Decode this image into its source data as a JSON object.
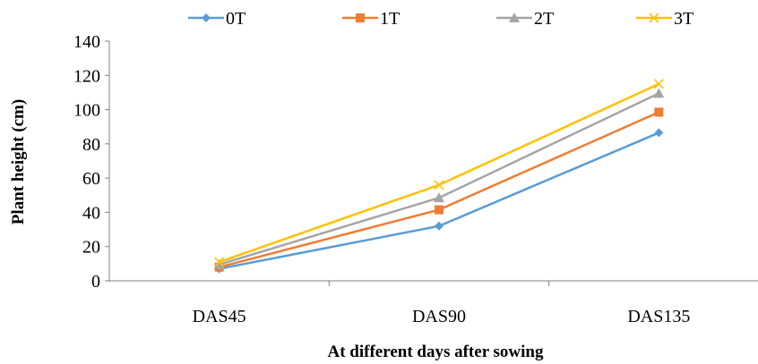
{
  "chart_data": {
    "type": "line",
    "title": "",
    "xlabel": "At different days after sowing",
    "ylabel": "Plant height (cm)",
    "categories": [
      "DAS45",
      "DAS90",
      "DAS135"
    ],
    "ylim": [
      0,
      140
    ],
    "yticks": [
      "0",
      "20",
      "40",
      "60",
      "80",
      "100",
      "120",
      "140"
    ],
    "grid": false,
    "legend_position": "top",
    "series": [
      {
        "name": "0T",
        "values": [
          7,
          32,
          86.5
        ],
        "color": "#5B9BD5",
        "marker": "diamond"
      },
      {
        "name": "1T",
        "values": [
          8,
          41.5,
          98.5
        ],
        "color": "#ED7D31",
        "marker": "square"
      },
      {
        "name": "2T",
        "values": [
          9.5,
          48.5,
          109.5
        ],
        "color": "#A5A5A5",
        "marker": "triangle"
      },
      {
        "name": "3T",
        "values": [
          11,
          56,
          115
        ],
        "color": "#FFC000",
        "marker": "x"
      }
    ]
  }
}
